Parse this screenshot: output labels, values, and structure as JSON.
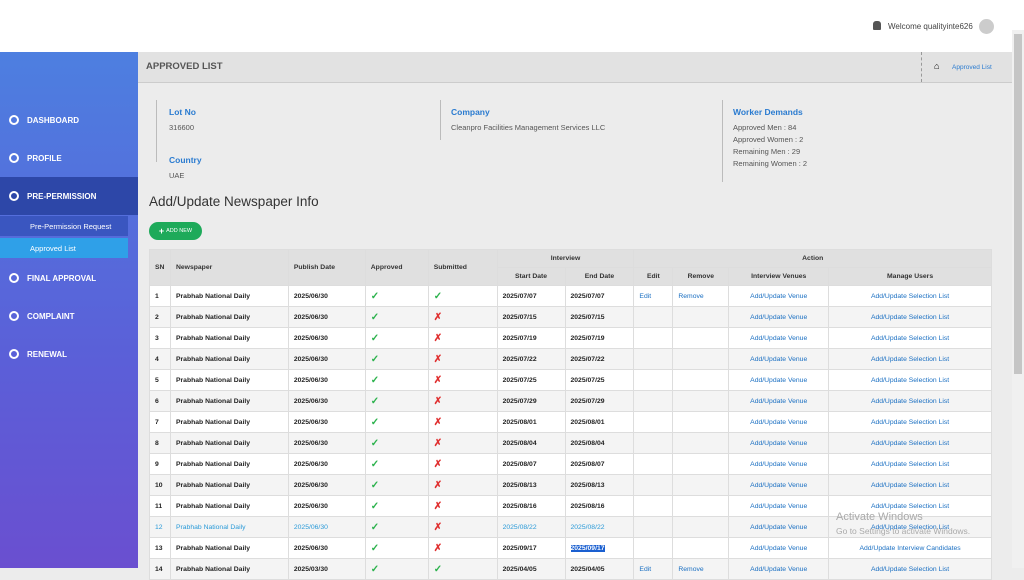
{
  "header": {
    "welcome": "Welcome qualityinte626"
  },
  "sidebar": {
    "items": [
      "DASHBOARD",
      "PROFILE",
      "PRE-PERMISSION",
      "FINAL APPROVAL",
      "COMPLAINT",
      "RENEWAL"
    ],
    "subitems": [
      "Pre-Permission Request",
      "Approved List"
    ]
  },
  "page": {
    "title": "APPROVED LIST",
    "breadcrumb": "Approved List"
  },
  "info": {
    "lot_no": {
      "label": "Lot No",
      "value": "316600"
    },
    "country": {
      "label": "Country",
      "value": "UAE"
    },
    "company": {
      "label": "Company",
      "value": "Cleanpro Facilities Management Services LLC"
    },
    "worker_demands": {
      "label": "Worker Demands",
      "lines": [
        "Approved Men : 84",
        "Approved Women : 2",
        "Remaining Men : 29",
        "Remaining Women : 2"
      ]
    }
  },
  "section_title": "Add/Update Newspaper Info",
  "add_button": "ADD NEW",
  "table": {
    "header_top": [
      "SN",
      "Newspaper",
      "Publish Date",
      "Approved",
      "Submitted",
      "Interview",
      "Action"
    ],
    "header_sub": [
      "Start Date",
      "End Date",
      "Edit",
      "Remove",
      "Interview Venues",
      "Manage Users"
    ],
    "rows": [
      [
        "1",
        "Prabhab National Daily",
        "2025/06/30",
        "✓",
        "✓",
        "2025/07/07",
        "2025/07/07",
        "Edit",
        "Remove",
        "Add/Update Venue",
        "Add/Update Selection List"
      ],
      [
        "2",
        "Prabhab National Daily",
        "2025/06/30",
        "✓",
        "✗",
        "2025/07/15",
        "2025/07/15",
        null,
        null,
        "Add/Update Venue",
        "Add/Update Selection List"
      ],
      [
        "3",
        "Prabhab National Daily",
        "2025/06/30",
        "✓",
        "✗",
        "2025/07/19",
        "2025/07/19",
        null,
        null,
        "Add/Update Venue",
        "Add/Update Selection List"
      ],
      [
        "4",
        "Prabhab National Daily",
        "2025/06/30",
        "✓",
        "✗",
        "2025/07/22",
        "2025/07/22",
        null,
        null,
        "Add/Update Venue",
        "Add/Update Selection List"
      ],
      [
        "5",
        "Prabhab National Daily",
        "2025/06/30",
        "✓",
        "✗",
        "2025/07/25",
        "2025/07/25",
        null,
        null,
        "Add/Update Venue",
        "Add/Update Selection List"
      ],
      [
        "6",
        "Prabhab National Daily",
        "2025/06/30",
        "✓",
        "✗",
        "2025/07/29",
        "2025/07/29",
        null,
        null,
        "Add/Update Venue",
        "Add/Update Selection List"
      ],
      [
        "7",
        "Prabhab National Daily",
        "2025/06/30",
        "✓",
        "✗",
        "2025/08/01",
        "2025/08/01",
        null,
        null,
        "Add/Update Venue",
        "Add/Update Selection List"
      ],
      [
        "8",
        "Prabhab National Daily",
        "2025/06/30",
        "✓",
        "✗",
        "2025/08/04",
        "2025/08/04",
        null,
        null,
        "Add/Update Venue",
        "Add/Update Selection List"
      ],
      [
        "9",
        "Prabhab National Daily",
        "2025/06/30",
        "✓",
        "✗",
        "2025/08/07",
        "2025/08/07",
        null,
        null,
        "Add/Update Venue",
        "Add/Update Selection List"
      ],
      [
        "10",
        "Prabhab National Daily",
        "2025/06/30",
        "✓",
        "✗",
        "2025/08/13",
        "2025/08/13",
        null,
        null,
        "Add/Update Venue",
        "Add/Update Selection List"
      ],
      [
        "11",
        "Prabhab National Daily",
        "2025/06/30",
        "✓",
        "✗",
        "2025/08/16",
        "2025/08/16",
        null,
        null,
        "Add/Update Venue",
        "Add/Update Selection List"
      ],
      [
        "12",
        "Prabhab National Daily",
        "2025/06/30",
        "✓",
        "✗",
        "2025/08/22",
        "2025/08/22",
        null,
        null,
        "Add/Update Venue",
        "Add/Update Selection List"
      ],
      [
        "13",
        "Prabhab National Daily",
        "2025/06/30",
        "✓",
        "✗",
        "2025/09/17",
        "2025/09/17",
        null,
        null,
        "Add/Update Venue",
        "Add/Update Interview Candidates"
      ],
      [
        "14",
        "Prabhab National Daily",
        "2025/03/30",
        "✓",
        "✓",
        "2025/04/05",
        "2025/04/05",
        "Edit",
        "Remove",
        "Add/Update Venue",
        "Add/Update Selection List"
      ]
    ]
  },
  "watermark": {
    "title": "Activate Windows",
    "text": "Go to Settings to activate Windows."
  }
}
